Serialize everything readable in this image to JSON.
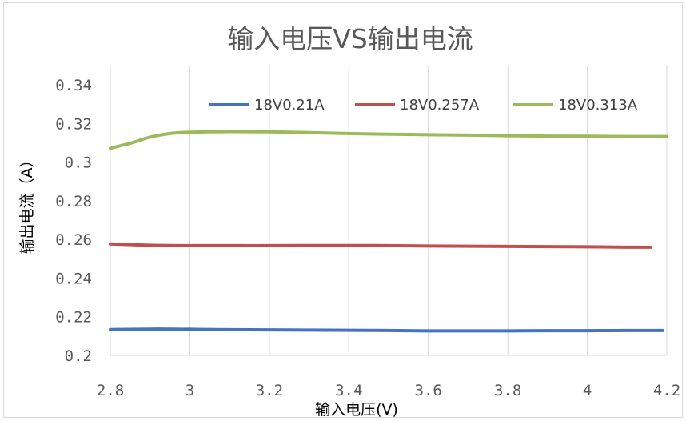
{
  "chart_data": {
    "type": "line",
    "title": "输入电压VS输出电流",
    "xlabel": "输入电压(V)",
    "ylabel": "输出电流（A）",
    "xlim": [
      2.8,
      4.2
    ],
    "ylim": [
      0.2,
      0.35
    ],
    "x_ticks": [
      "2.8",
      "3",
      "3.2",
      "3.4",
      "3.6",
      "3.8",
      "4",
      "4.2"
    ],
    "y_ticks": [
      "0.2",
      "0.22",
      "0.24",
      "0.26",
      "0.28",
      "0.3",
      "0.32",
      "0.34"
    ],
    "grid": "vertical",
    "legend_position": "top",
    "series": [
      {
        "name": "18V0.21A",
        "color": "#4472C4",
        "x": [
          2.8,
          2.9,
          3.0,
          3.1,
          3.2,
          3.3,
          3.4,
          3.5,
          3.6,
          3.7,
          3.8,
          3.9,
          4.0,
          4.1,
          4.19
        ],
        "y": [
          0.2134,
          0.2136,
          0.2135,
          0.2133,
          0.2132,
          0.2131,
          0.213,
          0.2129,
          0.2127,
          0.2127,
          0.2127,
          0.2128,
          0.2128,
          0.2129,
          0.2129
        ]
      },
      {
        "name": "18V0.257A",
        "color": "#C0504D",
        "x": [
          2.8,
          2.9,
          3.0,
          3.1,
          3.2,
          3.3,
          3.4,
          3.5,
          3.6,
          3.7,
          3.8,
          3.9,
          4.0,
          4.1,
          4.16
        ],
        "y": [
          0.2577,
          0.257,
          0.2568,
          0.2568,
          0.2568,
          0.2569,
          0.2569,
          0.2568,
          0.2566,
          0.2565,
          0.2564,
          0.2563,
          0.2562,
          0.256,
          0.256
        ]
      },
      {
        "name": "18V0.313A",
        "color": "#9BBB59",
        "x": [
          2.8,
          2.85,
          2.9,
          2.95,
          3.0,
          3.1,
          3.2,
          3.3,
          3.4,
          3.5,
          3.6,
          3.7,
          3.8,
          3.9,
          4.0,
          4.1,
          4.2
        ],
        "y": [
          0.3072,
          0.3098,
          0.313,
          0.3148,
          0.3155,
          0.3158,
          0.3157,
          0.3153,
          0.3148,
          0.3145,
          0.3142,
          0.314,
          0.3137,
          0.3135,
          0.3134,
          0.3133,
          0.3133
        ]
      }
    ]
  }
}
